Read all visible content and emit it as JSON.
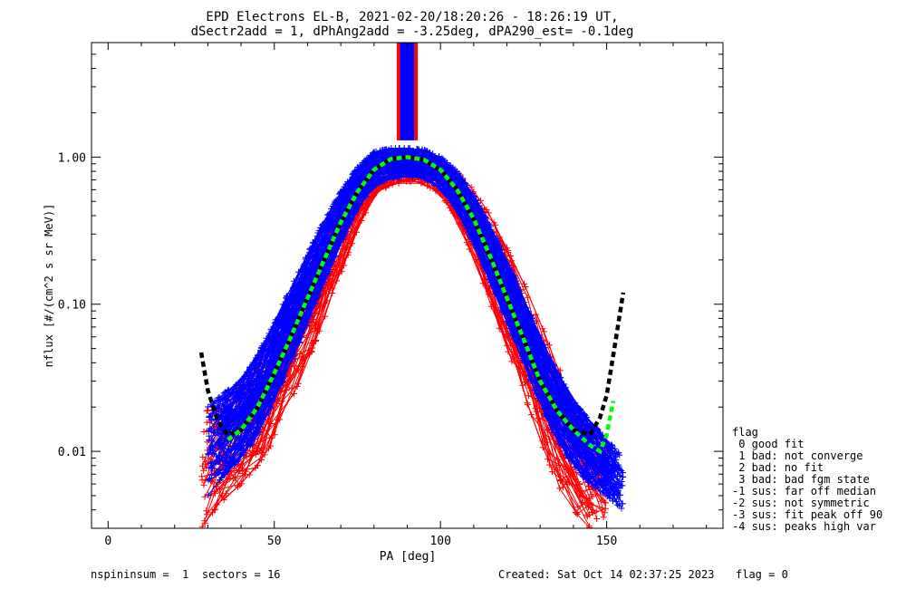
{
  "chart_data": {
    "type": "line",
    "title": "EPD Electrons EL-B, 2021-02-20/18:20:26 - 18:26:19 UT,",
    "subtitle": "dSectr2add = 1, dPhAng2add = -3.25deg, dPA290_est=  -0.1deg",
    "xlabel": "PA [deg]",
    "ylabel": "nflux [#/(cm^2 s sr MeV)]",
    "xlim": [
      -5,
      185
    ],
    "ylim": [
      0.003,
      6.0
    ],
    "yscale": "log",
    "x_ticks": [
      "0",
      "50",
      "100",
      "150"
    ],
    "y_ticks": [
      "0.01",
      "0.10",
      "1.00"
    ],
    "grid": false,
    "colors": {
      "red_series": "#ff0000",
      "blue_series": "#0000ff",
      "fit_green": "#00ff00",
      "fit_black": "#000000"
    },
    "series": [
      {
        "color": "#000000",
        "style": "dashed",
        "x": [
          28,
          30,
          33,
          36,
          40,
          45,
          50,
          55,
          60,
          65,
          70,
          75,
          80,
          85,
          90,
          95,
          100,
          105,
          110,
          115,
          120,
          125,
          130,
          135,
          140,
          145,
          148,
          150,
          152,
          155
        ],
        "y": [
          0.047,
          0.026,
          0.016,
          0.013,
          0.014,
          0.02,
          0.034,
          0.06,
          0.11,
          0.2,
          0.36,
          0.58,
          0.82,
          0.97,
          1.0,
          0.96,
          0.82,
          0.6,
          0.38,
          0.21,
          0.11,
          0.058,
          0.03,
          0.019,
          0.014,
          0.013,
          0.017,
          0.024,
          0.045,
          0.12
        ]
      },
      {
        "color": "#00ff00",
        "style": "dashed",
        "x": [
          36,
          40,
          45,
          50,
          55,
          60,
          65,
          70,
          75,
          80,
          85,
          90,
          95,
          100,
          105,
          110,
          115,
          120,
          125,
          130,
          135,
          140,
          145,
          148,
          150,
          152
        ],
        "y": [
          0.012,
          0.014,
          0.02,
          0.034,
          0.06,
          0.11,
          0.2,
          0.36,
          0.58,
          0.82,
          0.97,
          1.0,
          0.96,
          0.82,
          0.6,
          0.38,
          0.21,
          0.11,
          0.058,
          0.03,
          0.019,
          0.014,
          0.011,
          0.01,
          0.013,
          0.022
        ]
      },
      {
        "color": "#0000ff",
        "style": "band",
        "x": [
          30,
          35,
          40,
          45,
          50,
          55,
          60,
          65,
          70,
          75,
          80,
          85,
          90,
          95,
          100,
          105,
          110,
          115,
          120,
          125,
          130,
          135,
          140,
          145,
          150,
          155
        ],
        "y_low": [
          0.005,
          0.007,
          0.009,
          0.013,
          0.022,
          0.04,
          0.075,
          0.14,
          0.26,
          0.45,
          0.65,
          0.72,
          0.74,
          0.72,
          0.62,
          0.44,
          0.26,
          0.14,
          0.075,
          0.04,
          0.021,
          0.012,
          0.008,
          0.006,
          0.005,
          0.004
        ],
        "y_high": [
          0.02,
          0.025,
          0.03,
          0.045,
          0.075,
          0.13,
          0.22,
          0.37,
          0.58,
          0.85,
          1.08,
          1.15,
          1.15,
          1.12,
          1.0,
          0.8,
          0.55,
          0.34,
          0.2,
          0.11,
          0.06,
          0.035,
          0.022,
          0.016,
          0.012,
          0.009
        ]
      },
      {
        "color": "#ff0000",
        "style": "band",
        "x": [
          28,
          32,
          36,
          40,
          45,
          50,
          55,
          60,
          65,
          70,
          75,
          80,
          85,
          90,
          95,
          100,
          105,
          110,
          115,
          120,
          125,
          130,
          135,
          140,
          145,
          150
        ],
        "y_low": [
          0.003,
          0.004,
          0.005,
          0.006,
          0.008,
          0.012,
          0.022,
          0.04,
          0.08,
          0.16,
          0.32,
          0.55,
          0.65,
          0.68,
          0.66,
          0.56,
          0.38,
          0.2,
          0.1,
          0.05,
          0.025,
          0.012,
          0.006,
          0.004,
          0.003,
          0.003
        ],
        "y_high": [
          0.018,
          0.02,
          0.022,
          0.028,
          0.04,
          0.065,
          0.11,
          0.2,
          0.34,
          0.55,
          0.8,
          0.98,
          1.02,
          1.0,
          1.0,
          0.95,
          0.8,
          0.6,
          0.4,
          0.24,
          0.14,
          0.075,
          0.04,
          0.022,
          0.014,
          0.01
        ]
      }
    ],
    "spike": {
      "x_min": 87,
      "x_max": 93,
      "color": "#0000ff",
      "red_edge": "#ff0000"
    }
  },
  "legend": {
    "title": "flag",
    "entries": [
      " 0 good fit",
      " 1 bad: not converge",
      " 2 bad: no fit",
      " 3 bad: bad fgm state",
      "-1 sus: far off median",
      "-2 sus: not symmetric",
      "-3 sus: fit peak off 90",
      "-4 sus: peaks high var"
    ]
  },
  "footer": {
    "left": "nspininsum =  1  sectors = 16",
    "created": "Created: Sat Oct 14 02:37:25 2023",
    "flag": "flag = 0"
  }
}
